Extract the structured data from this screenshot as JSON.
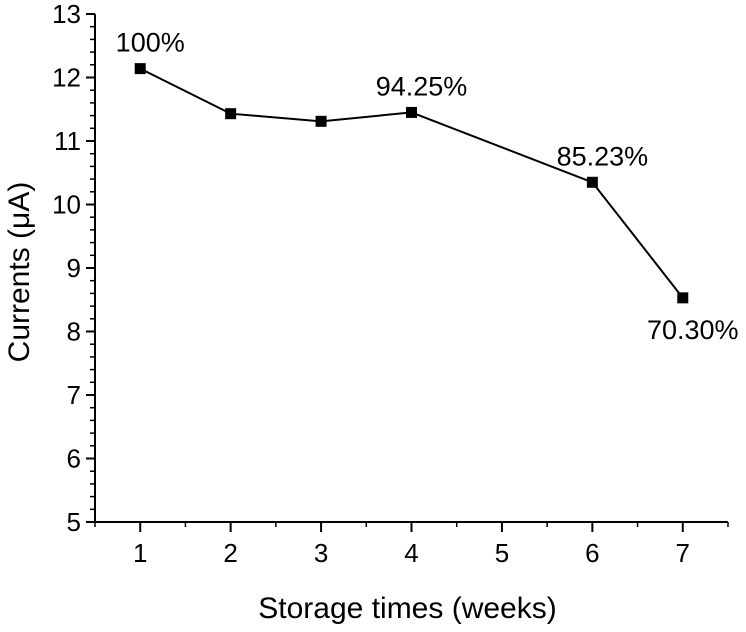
{
  "chart_data": {
    "type": "line",
    "title": "",
    "xlabel": "Storage times (weeks)",
    "ylabel": "Currents (μA)",
    "xlim": [
      0.5,
      7.5
    ],
    "ylim": [
      5,
      13
    ],
    "x_ticks": [
      1,
      2,
      3,
      4,
      5,
      6,
      7
    ],
    "y_ticks": [
      5,
      6,
      7,
      8,
      9,
      10,
      11,
      12,
      13
    ],
    "grid": false,
    "legend": "none",
    "series": [
      {
        "x": [
          1,
          2,
          3,
          4,
          6,
          7
        ],
        "values": [
          12.14,
          11.43,
          11.31,
          11.45,
          10.35,
          8.53
        ],
        "marker": "square",
        "color": "#000000"
      }
    ],
    "annotations": [
      {
        "x": 1,
        "y": 12.14,
        "text": "100%",
        "placement": "above"
      },
      {
        "x": 4,
        "y": 11.45,
        "text": "94.25%",
        "placement": "above"
      },
      {
        "x": 6,
        "y": 10.35,
        "text": "85.23%",
        "placement": "above"
      },
      {
        "x": 7,
        "y": 8.53,
        "text": "70.30%",
        "placement": "below"
      }
    ]
  }
}
